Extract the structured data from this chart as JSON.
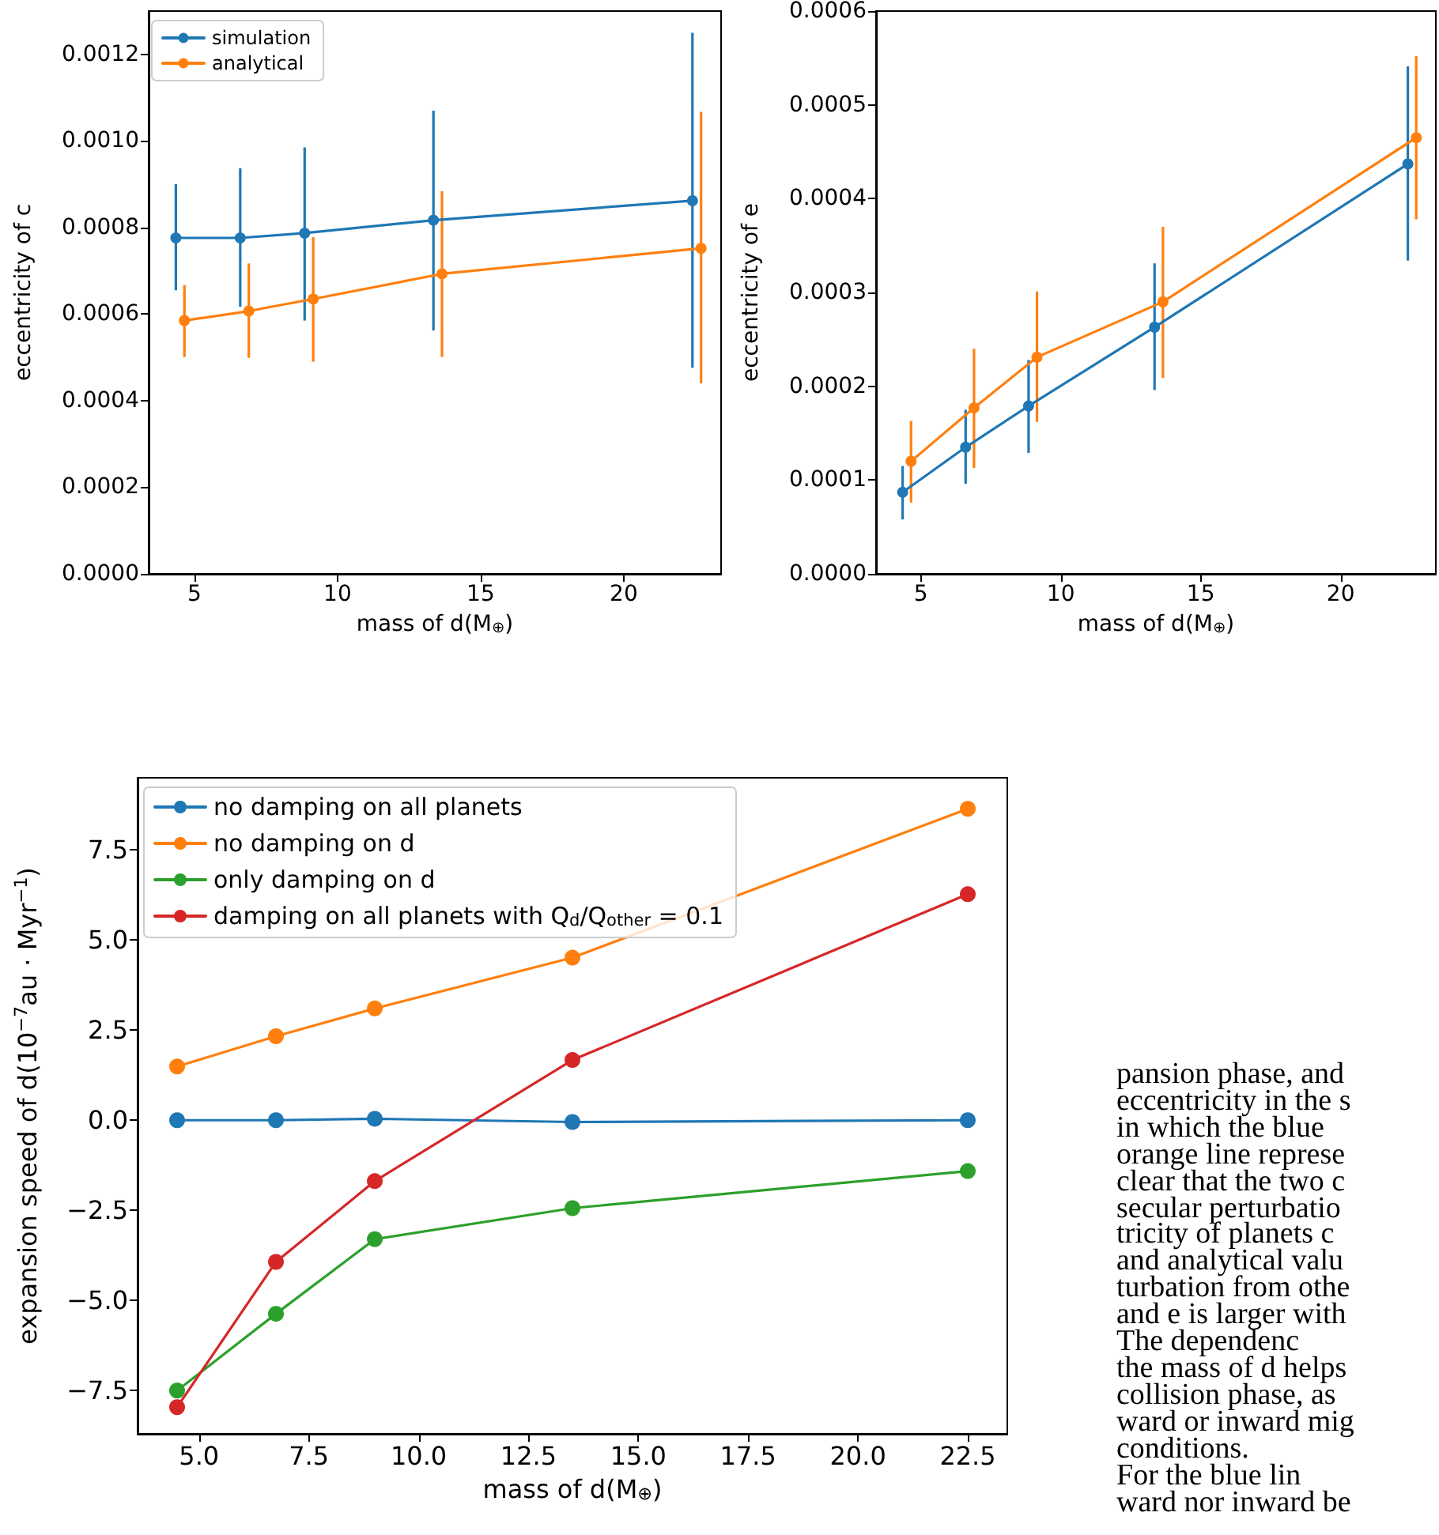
{
  "chart_data": [
    {
      "type": "line",
      "xlabel": "mass of d(M$_{⊕}$)",
      "ylabel": "eccentricity of c",
      "marker": "circle",
      "legend": "top left",
      "grid": false,
      "xlim": [
        3.4,
        23.4
      ],
      "xticks": [
        5,
        10,
        15,
        20
      ],
      "ylim": [
        0,
        0.0013
      ],
      "yticks": [
        {
          "value": 0,
          "label": "0.0000"
        },
        {
          "value": 0.0002,
          "label": "0.0002"
        },
        {
          "value": 0.0004,
          "label": "0.0004"
        },
        {
          "value": 0.0006,
          "label": "0.0006"
        },
        {
          "value": 0.0008,
          "label": "0.0008"
        },
        {
          "value": 0.001,
          "label": "0.0010"
        },
        {
          "value": 0.0012,
          "label": "0.0012"
        }
      ],
      "series": [
        {
          "name": "simulation",
          "color": "#1f77b4",
          "x": [
            4.35,
            6.6,
            8.85,
            13.35,
            22.4
          ],
          "values": [
            0.000776,
            0.000776,
            0.000787,
            0.000817,
            0.000862
          ],
          "errors": [
            [
              0.000655,
              0.0009
            ],
            [
              0.000617,
              0.000937
            ],
            [
              0.000585,
              0.000985
            ],
            [
              0.000562,
              0.00107
            ],
            [
              0.000476,
              0.00125
            ]
          ]
        },
        {
          "name": "analytical",
          "color": "#ff7f0e",
          "x": [
            4.65,
            6.9,
            9.15,
            13.65,
            22.7
          ],
          "values": [
            0.000585,
            0.000607,
            0.000635,
            0.000693,
            0.000752
          ],
          "errors": [
            [
              0.000501,
              0.000667
            ],
            [
              0.000499,
              0.000717
            ],
            [
              0.00049,
              0.000778
            ],
            [
              0.000501,
              0.000884
            ],
            [
              0.00044,
              0.001067
            ]
          ]
        }
      ]
    },
    {
      "type": "line",
      "xlabel": "mass of d(M$_{⊕}$)",
      "ylabel": "eccentricity of e",
      "marker": "circle",
      "grid": false,
      "xlim": [
        3.4,
        23.4
      ],
      "xticks": [
        5,
        10,
        15,
        20
      ],
      "ylim": [
        0,
        0.0006
      ],
      "yticks": [
        {
          "value": 0,
          "label": "0.0000"
        },
        {
          "value": 0.0001,
          "label": "0.0001"
        },
        {
          "value": 0.0002,
          "label": "0.0002"
        },
        {
          "value": 0.0003,
          "label": "0.0003"
        },
        {
          "value": 0.0004,
          "label": "0.0004"
        },
        {
          "value": 0.0005,
          "label": "0.0005"
        },
        {
          "value": 0.0006,
          "label": "0.0006"
        }
      ],
      "series": [
        {
          "color": "#1f77b4",
          "x": [
            4.35,
            6.6,
            8.85,
            13.35,
            22.4
          ],
          "values": [
            8.7e-05,
            0.000135,
            0.000179,
            0.000263,
            0.000437
          ],
          "errors": [
            [
              5.8e-05,
              0.000115
            ],
            [
              9.6e-05,
              0.000175
            ],
            [
              0.000129,
              0.000228
            ],
            [
              0.000196,
              0.000331
            ],
            [
              0.000334,
              0.000541
            ]
          ]
        },
        {
          "color": "#ff7f0e",
          "x": [
            4.65,
            6.9,
            9.15,
            13.65,
            22.7
          ],
          "values": [
            0.00012,
            0.000177,
            0.000231,
            0.00029,
            0.000465
          ],
          "errors": [
            [
              7.6e-05,
              0.000163
            ],
            [
              0.000113,
              0.00024
            ],
            [
              0.000162,
              0.000301
            ],
            [
              0.000209,
              0.00037
            ],
            [
              0.000378,
              0.000552
            ]
          ]
        }
      ]
    },
    {
      "type": "line",
      "xlabel": "mass of d(M$_{⊕}$)",
      "ylabel": "expansion speed of d(10$^{−7}$au · Myr$^{−1}$)",
      "marker": "circle",
      "legend": "top left",
      "grid": false,
      "x": [
        4.5,
        6.75,
        9,
        13.5,
        22.5
      ],
      "xlim": [
        3.6,
        23.4
      ],
      "xticks": [
        {
          "value": 5,
          "label": "5.0"
        },
        {
          "value": 7.5,
          "label": "7.5"
        },
        {
          "value": 10,
          "label": "10.0"
        },
        {
          "value": 12.5,
          "label": "12.5"
        },
        {
          "value": 15,
          "label": "15.0"
        },
        {
          "value": 17.5,
          "label": "17.5"
        },
        {
          "value": 20,
          "label": "20.0"
        },
        {
          "value": 22.5,
          "label": "22.5"
        }
      ],
      "ylim": [
        -8.7,
        9.5
      ],
      "yticks": [
        {
          "value": -7.5,
          "label": "−7.5"
        },
        {
          "value": -5,
          "label": "−5.0"
        },
        {
          "value": -2.5,
          "label": "−2.5"
        },
        {
          "value": 0,
          "label": "0.0"
        },
        {
          "value": 2.5,
          "label": "2.5"
        },
        {
          "value": 5,
          "label": "5.0"
        },
        {
          "value": 7.5,
          "label": "7.5"
        }
      ],
      "series": [
        {
          "name": "no damping on all planets",
          "color": "#1f77b4",
          "values": [
            0,
            0,
            0.04,
            -0.05,
            0
          ]
        },
        {
          "name": "no damping on d",
          "color": "#ff7f0e",
          "values": [
            1.49,
            2.33,
            3.1,
            4.51,
            8.64
          ]
        },
        {
          "name": "only damping on d",
          "color": "#2ca02c",
          "values": [
            -7.5,
            -5.37,
            -3.3,
            -2.44,
            -1.41
          ]
        },
        {
          "name": "damping on all planets with Q$_{d}$/Q$_{other}$ = 0.1",
          "color": "#d62728",
          "values": [
            -7.96,
            -3.93,
            -1.69,
            1.67,
            6.27
          ]
        }
      ]
    },
    {
      "type": "other",
      "annotations": [
        "pansion phase, and",
        "eccentricity in the s",
        "in which the blue",
        "orange line represe",
        "clear that the two c",
        "secular perturbatio",
        "tricity of planets c",
        "and analytical valu",
        "turbation from othe",
        "and e is larger with",
        "The dependenc",
        "the mass of d helps",
        "collision phase, as",
        "ward or inward mig",
        "conditions.",
        "For the blue lin",
        "ward nor inward be"
      ]
    }
  ]
}
